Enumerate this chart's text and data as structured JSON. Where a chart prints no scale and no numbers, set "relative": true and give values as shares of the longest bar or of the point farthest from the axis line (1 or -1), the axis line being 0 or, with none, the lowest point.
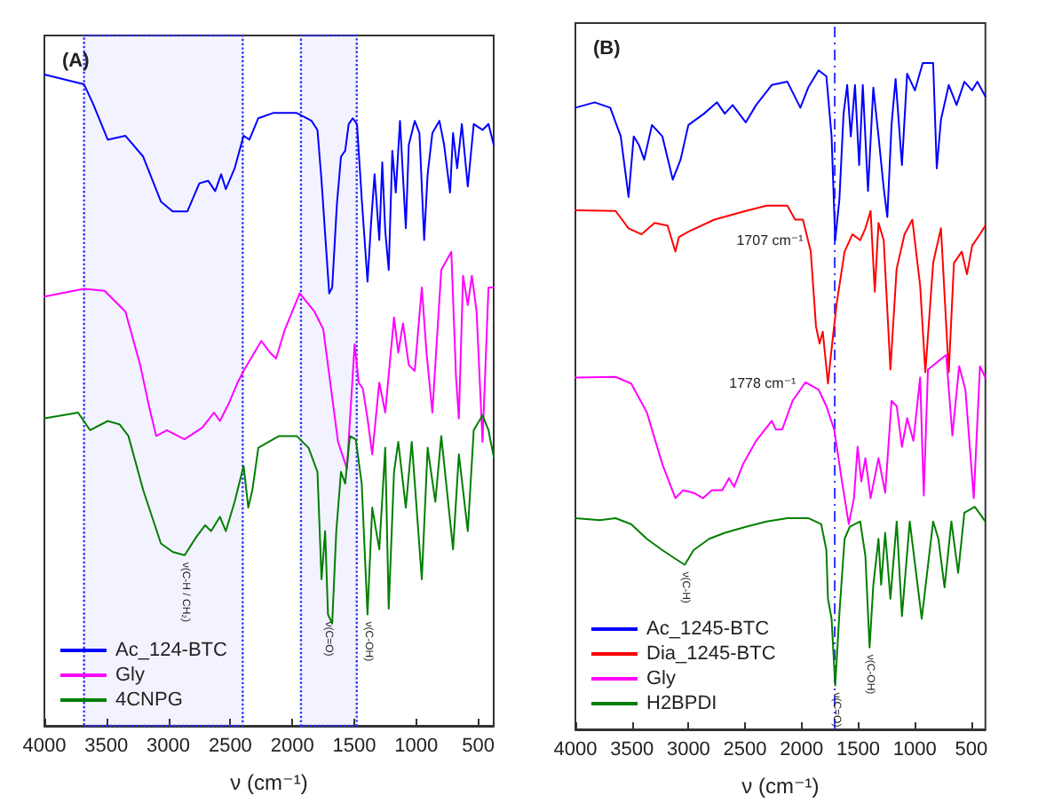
{
  "chart_data": [
    {
      "type": "line",
      "title": "(A)",
      "xlabel": "ν (cm⁻¹)",
      "relative": true,
      "xlim": [
        4000,
        375
      ],
      "xticks": [
        4000,
        3500,
        3000,
        2500,
        2000,
        1500,
        1000,
        500
      ],
      "legend": "bottom left",
      "bands": [
        {
          "axis": "x",
          "from": 3680,
          "to": 2400,
          "color": "#3333ff"
        },
        {
          "axis": "x",
          "from": 1930,
          "to": 1480,
          "color": "#3333ff"
        }
      ],
      "annotations": [
        {
          "text": "ν(C-H / CH₂)",
          "x": 2869,
          "y": 0.262
        },
        {
          "text": "ν(C=O)",
          "x": 1712,
          "y": 0.171
        },
        {
          "text": "ν(C-OH)",
          "x": 1393,
          "y": 0.171
        }
      ],
      "series": [
        {
          "name": "Ac_124-BTC",
          "color": "#0000ff",
          "x": [
            4000,
            3680,
            3609,
            3489,
            3346,
            3203,
            3060,
            2965,
            2846,
            2750,
            2679,
            2622,
            2574,
            2536,
            2465,
            2393,
            2346,
            2274,
            2155,
            1964,
            1845,
            1797,
            1764,
            1735,
            1702,
            1678,
            1640,
            1607,
            1573,
            1545,
            1512,
            1478,
            1440,
            1393,
            1364,
            1336,
            1298,
            1274,
            1250,
            1222,
            1193,
            1165,
            1131,
            1084,
            1060,
            1012,
            974,
            936,
            908,
            870,
            813,
            775,
            727,
            703,
            670,
            632,
            584,
            536,
            465,
            417,
            375
          ],
          "values": [
            1.0,
            0.985,
            0.956,
            0.9,
            0.906,
            0.874,
            0.805,
            0.79,
            0.79,
            0.833,
            0.837,
            0.821,
            0.847,
            0.824,
            0.856,
            0.906,
            0.9,
            0.933,
            0.941,
            0.941,
            0.929,
            0.915,
            0.837,
            0.755,
            0.664,
            0.673,
            0.801,
            0.874,
            0.883,
            0.924,
            0.933,
            0.924,
            0.81,
            0.682,
            0.773,
            0.847,
            0.746,
            0.865,
            0.76,
            0.7,
            0.883,
            0.819,
            0.929,
            0.764,
            0.892,
            0.929,
            0.91,
            0.746,
            0.847,
            0.91,
            0.929,
            0.892,
            0.819,
            0.91,
            0.856,
            0.924,
            0.828,
            0.924,
            0.915,
            0.924,
            0.892
          ]
        },
        {
          "name": "Gly",
          "color": "#ff00ff",
          "x": [
            4000,
            3680,
            3514,
            3346,
            3227,
            3155,
            3098,
            3012,
            2869,
            2726,
            2631,
            2584,
            2512,
            2441,
            2393,
            2250,
            2179,
            2131,
            2059,
            1940,
            1821,
            1750,
            1631,
            1559,
            1497,
            1464,
            1431,
            1393,
            1355,
            1298,
            1250,
            1179,
            1145,
            1107,
            1060,
            1012,
            955,
            917,
            870,
            798,
            717,
            679,
            656,
            622,
            584,
            551,
            513,
            465,
            417,
            375
          ],
          "values": [
            0.659,
            0.671,
            0.668,
            0.636,
            0.554,
            0.49,
            0.445,
            0.454,
            0.44,
            0.458,
            0.481,
            0.468,
            0.495,
            0.527,
            0.545,
            0.591,
            0.573,
            0.564,
            0.609,
            0.664,
            0.636,
            0.609,
            0.436,
            0.395,
            0.586,
            0.527,
            0.518,
            0.472,
            0.417,
            0.527,
            0.481,
            0.627,
            0.573,
            0.618,
            0.554,
            0.545,
            0.673,
            0.573,
            0.481,
            0.7,
            0.728,
            0.536,
            0.472,
            0.691,
            0.646,
            0.691,
            0.636,
            0.436,
            0.673,
            0.673
          ]
        },
        {
          "name": "4CNPG",
          "color": "#007f00",
          "x": [
            4000,
            3728,
            3632,
            3489,
            3394,
            3322,
            3203,
            3060,
            2965,
            2869,
            2774,
            2703,
            2655,
            2584,
            2536,
            2465,
            2393,
            2355,
            2322,
            2274,
            2107,
            1964,
            1869,
            1797,
            1764,
            1735,
            1712,
            1678,
            1645,
            1607,
            1573,
            1535,
            1488,
            1440,
            1393,
            1355,
            1298,
            1250,
            1222,
            1179,
            1145,
            1084,
            1036,
            955,
            908,
            846,
            798,
            703,
            656,
            584,
            536,
            465,
            417,
            375
          ],
          "values": [
            0.472,
            0.481,
            0.454,
            0.468,
            0.463,
            0.445,
            0.362,
            0.28,
            0.267,
            0.262,
            0.29,
            0.308,
            0.299,
            0.321,
            0.299,
            0.344,
            0.399,
            0.335,
            0.362,
            0.427,
            0.445,
            0.445,
            0.427,
            0.39,
            0.225,
            0.299,
            0.171,
            0.157,
            0.299,
            0.39,
            0.372,
            0.445,
            0.44,
            0.372,
            0.171,
            0.335,
            0.271,
            0.427,
            0.18,
            0.39,
            0.436,
            0.335,
            0.436,
            0.225,
            0.427,
            0.344,
            0.445,
            0.271,
            0.417,
            0.299,
            0.454,
            0.477,
            0.454,
            0.413
          ]
        }
      ]
    },
    {
      "type": "line",
      "title": "(B)",
      "xlabel": "ν (cm⁻¹)",
      "relative": true,
      "xlim": [
        4000,
        375
      ],
      "xticks": [
        4000,
        3500,
        3000,
        2500,
        2000,
        1500,
        1000,
        500
      ],
      "legend": "bottom left",
      "ref_lines": [
        {
          "axis": "x",
          "value": 1707,
          "color": "#3333ff",
          "line_style": "dashed"
        }
      ],
      "annotations": [
        {
          "text": "1707 cm⁻¹",
          "x": 1703,
          "y": 0.734
        },
        {
          "text": "1778 cm⁻¹",
          "x": 1767,
          "y": 0.519
        },
        {
          "text": "ν(C-H)",
          "x": 3033,
          "y": 0.247
        },
        {
          "text": "ν(C=O)",
          "x": 1703,
          "y": 0.066
        },
        {
          "text": "ν(C-OH)",
          "x": 1399,
          "y": 0.123
        }
      ],
      "series": [
        {
          "name": "Ac_1245-BTC",
          "color": "#0000ff",
          "x": [
            4000,
            3830,
            3692,
            3599,
            3530,
            3484,
            3438,
            3392,
            3323,
            3231,
            3139,
            3070,
            3001,
            2863,
            2748,
            2679,
            2610,
            2494,
            2402,
            2264,
            2126,
            2011,
            1942,
            1850,
            1781,
            1735,
            1703,
            1666,
            1629,
            1597,
            1565,
            1528,
            1491,
            1459,
            1413,
            1366,
            1320,
            1274,
            1242,
            1205,
            1169,
            1113,
            1067,
            998,
            929,
            837,
            805,
            768,
            699,
            630,
            561,
            492,
            446,
            376
          ],
          "values": [
            0.933,
            0.941,
            0.933,
            0.89,
            0.799,
            0.89,
            0.877,
            0.855,
            0.907,
            0.89,
            0.825,
            0.855,
            0.907,
            0.924,
            0.941,
            0.924,
            0.937,
            0.911,
            0.937,
            0.967,
            0.972,
            0.933,
            0.963,
            0.989,
            0.98,
            0.89,
            0.734,
            0.795,
            0.924,
            0.967,
            0.89,
            0.967,
            0.847,
            0.967,
            0.808,
            0.963,
            0.89,
            0.812,
            0.769,
            0.907,
            0.976,
            0.847,
            0.984,
            0.959,
            1.0,
            1.0,
            0.842,
            0.915,
            0.967,
            0.937,
            0.972,
            0.959,
            0.972,
            0.95
          ]
        },
        {
          "name": "Dia_1245-BTC",
          "color": "#ff0000",
          "x": [
            4000,
            3645,
            3530,
            3415,
            3300,
            3185,
            3116,
            3084,
            3001,
            2771,
            2494,
            2310,
            2126,
            2057,
            1988,
            1919,
            1873,
            1841,
            1813,
            1767,
            1735,
            1689,
            1620,
            1551,
            1482,
            1436,
            1390,
            1353,
            1320,
            1274,
            1215,
            1160,
            1090,
            1021,
            952,
            906,
            837,
            768,
            699,
            653,
            584,
            538,
            492,
            423,
            376
          ],
          "values": [
            0.779,
            0.778,
            0.752,
            0.743,
            0.76,
            0.756,
            0.717,
            0.739,
            0.747,
            0.765,
            0.778,
            0.786,
            0.786,
            0.765,
            0.765,
            0.717,
            0.605,
            0.579,
            0.597,
            0.519,
            0.571,
            0.64,
            0.717,
            0.743,
            0.734,
            0.752,
            0.778,
            0.657,
            0.76,
            0.734,
            0.54,
            0.691,
            0.743,
            0.765,
            0.666,
            0.536,
            0.7,
            0.752,
            0.536,
            0.7,
            0.717,
            0.683,
            0.726,
            0.743,
            0.756
          ]
        },
        {
          "name": "Gly",
          "color": "#ff00ff",
          "x": [
            4000,
            3645,
            3507,
            3369,
            3231,
            3116,
            3047,
            2955,
            2872,
            2794,
            2702,
            2642,
            2596,
            2518,
            2402,
            2264,
            2227,
            2172,
            2080,
            1965,
            1850,
            1781,
            1712,
            1643,
            1583,
            1537,
            1505,
            1472,
            1436,
            1390,
            1320,
            1261,
            1205,
            1159,
            1113,
            1067,
            1012,
            952,
            920,
            883,
            722,
            667,
            607,
            552,
            478,
            423,
            376
          ],
          "values": [
            0.528,
            0.529,
            0.519,
            0.476,
            0.398,
            0.347,
            0.359,
            0.355,
            0.347,
            0.359,
            0.359,
            0.377,
            0.364,
            0.398,
            0.433,
            0.463,
            0.45,
            0.45,
            0.493,
            0.521,
            0.51,
            0.485,
            0.45,
            0.372,
            0.308,
            0.347,
            0.424,
            0.372,
            0.407,
            0.347,
            0.407,
            0.355,
            0.493,
            0.485,
            0.424,
            0.467,
            0.433,
            0.528,
            0.351,
            0.54,
            0.562,
            0.441,
            0.545,
            0.51,
            0.347,
            0.545,
            0.528
          ]
        },
        {
          "name": "H2BPDI",
          "color": "#007f00",
          "x": [
            4000,
            3784,
            3645,
            3507,
            3369,
            3231,
            3116,
            3033,
            2955,
            2817,
            2679,
            2494,
            2310,
            2126,
            1942,
            1827,
            1781,
            1767,
            1735,
            1703,
            1666,
            1620,
            1574,
            1528,
            1482,
            1436,
            1399,
            1366,
            1320,
            1297,
            1261,
            1215,
            1159,
            1113,
            1044,
            938,
            837,
            791,
            736,
            676,
            616,
            561,
            469,
            376
          ],
          "values": [
            0.317,
            0.314,
            0.317,
            0.308,
            0.286,
            0.269,
            0.256,
            0.247,
            0.269,
            0.286,
            0.295,
            0.304,
            0.312,
            0.317,
            0.317,
            0.308,
            0.269,
            0.196,
            0.166,
            0.066,
            0.174,
            0.286,
            0.304,
            0.308,
            0.312,
            0.26,
            0.123,
            0.217,
            0.286,
            0.217,
            0.295,
            0.196,
            0.312,
            0.17,
            0.312,
            0.166,
            0.312,
            0.286,
            0.213,
            0.312,
            0.235,
            0.325,
            0.334,
            0.312
          ]
        }
      ]
    }
  ]
}
